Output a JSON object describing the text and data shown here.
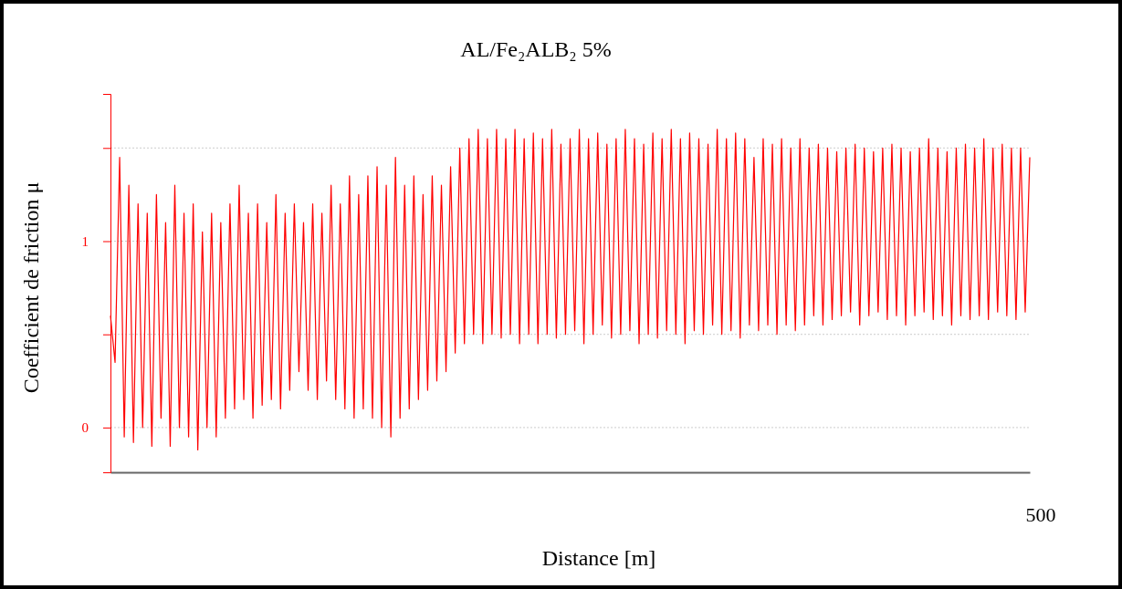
{
  "chart_data": {
    "type": "line",
    "title": "AL/Fe₂ALB₂   5%",
    "xlabel": "Distance [m]",
    "ylabel": "Coefficient de friction μ",
    "annotations": [
      "500"
    ],
    "ylim": [
      -0.24,
      1.79
    ],
    "yticks": [
      {
        "value": 0,
        "label": "0"
      },
      {
        "value": 0.5,
        "label": null
      },
      {
        "value": 1,
        "label": "1"
      },
      {
        "value": 1.5,
        "label": null
      }
    ],
    "grid": "y",
    "categories": [
      null,
      null,
      null,
      null,
      null,
      null,
      null,
      null,
      null,
      null,
      null,
      null,
      null,
      null,
      null,
      null,
      null,
      null,
      null,
      null,
      null,
      null,
      null,
      null,
      null,
      null,
      null,
      null,
      null,
      null,
      null,
      null,
      null,
      null,
      null,
      null,
      null,
      null,
      null,
      null,
      null,
      null,
      null,
      null,
      null,
      null,
      null,
      null,
      null,
      null,
      null,
      null,
      null,
      null,
      null,
      null,
      null,
      null,
      null,
      null,
      null,
      null,
      null,
      null,
      null,
      null,
      null,
      null,
      null,
      null,
      null,
      null,
      null,
      null,
      null,
      null,
      null,
      null,
      null,
      null,
      null,
      null,
      null,
      null,
      null,
      null,
      null,
      null,
      null,
      null,
      null,
      null,
      null,
      null,
      null,
      null,
      null,
      null,
      null,
      null,
      null,
      null,
      null,
      null,
      null,
      null,
      null,
      null,
      null,
      null,
      null,
      null,
      null,
      null,
      null,
      null,
      null,
      null,
      null,
      null,
      null,
      null,
      null,
      null,
      null,
      null,
      null,
      null,
      null,
      null,
      null,
      null,
      null,
      null,
      null,
      null,
      null,
      null,
      null,
      null,
      null,
      null,
      null,
      null,
      null,
      null,
      null,
      null,
      null,
      null,
      null,
      null,
      null,
      null,
      null,
      null,
      null,
      null,
      null,
      null,
      null,
      null,
      null,
      null,
      null,
      null,
      null,
      null,
      null,
      null,
      null,
      null,
      null,
      null,
      null,
      null,
      null,
      null,
      null,
      null,
      null,
      null,
      null,
      null,
      null,
      null,
      null,
      null,
      null,
      null,
      null,
      null,
      null,
      null,
      null,
      null,
      null,
      null,
      null,
      null,
      null
    ],
    "series": [
      {
        "color": "#ff0000",
        "values": [
          0.6,
          0.35,
          1.45,
          -0.05,
          1.3,
          -0.08,
          1.2,
          0.0,
          1.15,
          -0.1,
          1.25,
          0.05,
          1.1,
          -0.1,
          1.3,
          0.0,
          1.15,
          -0.05,
          1.2,
          -0.12,
          1.05,
          0.0,
          1.15,
          -0.05,
          1.1,
          0.05,
          1.2,
          0.1,
          1.3,
          0.15,
          1.15,
          0.05,
          1.2,
          0.12,
          1.1,
          0.15,
          1.25,
          0.1,
          1.15,
          0.2,
          1.2,
          0.3,
          1.1,
          0.2,
          1.2,
          0.15,
          1.15,
          0.25,
          1.3,
          0.15,
          1.2,
          0.1,
          1.35,
          0.05,
          1.25,
          0.1,
          1.35,
          0.05,
          1.4,
          0.0,
          1.3,
          -0.05,
          1.45,
          0.05,
          1.3,
          0.1,
          1.35,
          0.15,
          1.25,
          0.2,
          1.35,
          0.25,
          1.3,
          0.3,
          1.4,
          0.4,
          1.5,
          0.45,
          1.55,
          0.5,
          1.6,
          0.45,
          1.55,
          0.5,
          1.6,
          0.48,
          1.55,
          0.5,
          1.6,
          0.45,
          1.55,
          0.5,
          1.58,
          0.45,
          1.55,
          0.5,
          1.6,
          0.48,
          1.52,
          0.5,
          1.55,
          0.52,
          1.6,
          0.45,
          1.55,
          0.5,
          1.58,
          0.55,
          1.52,
          0.48,
          1.55,
          0.5,
          1.6,
          0.52,
          1.55,
          0.45,
          1.52,
          0.5,
          1.58,
          0.48,
          1.55,
          0.52,
          1.6,
          0.5,
          1.55,
          0.45,
          1.58,
          0.52,
          1.55,
          0.5,
          1.52,
          0.55,
          1.6,
          0.5,
          1.55,
          0.52,
          1.58,
          0.48,
          1.55,
          0.55,
          1.45,
          0.52,
          1.55,
          0.55,
          1.52,
          0.5,
          1.55,
          0.55,
          1.5,
          0.52,
          1.55,
          0.55,
          1.5,
          0.6,
          1.52,
          0.55,
          1.5,
          0.58,
          1.48,
          0.6,
          1.5,
          0.62,
          1.52,
          0.55,
          1.5,
          0.6,
          1.48,
          0.62,
          1.5,
          0.58,
          1.52,
          0.6,
          1.5,
          0.55,
          1.48,
          0.6,
          1.5,
          0.62,
          1.55,
          0.58,
          1.5,
          0.6,
          1.48,
          0.55,
          1.5,
          0.6,
          1.52,
          0.58,
          1.5,
          0.6,
          1.55,
          0.58,
          1.5,
          0.62,
          1.52,
          0.6,
          1.5,
          0.58,
          1.5,
          0.62,
          1.45
        ]
      }
    ]
  }
}
